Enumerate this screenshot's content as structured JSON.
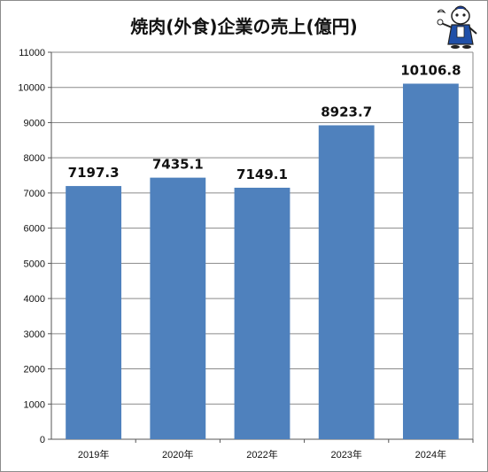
{
  "chart_data": {
    "type": "bar",
    "title": "焼肉(外食)企業の売上(億円)",
    "categories": [
      "2019年",
      "2020年",
      "2022年",
      "2023年",
      "2024年"
    ],
    "values": [
      7197.3,
      7435.1,
      7149.1,
      8923.7,
      10106.8
    ],
    "value_labels": [
      "7197.3",
      "7435.1",
      "7149.1",
      "8923.7",
      "10106.8"
    ],
    "ylim": [
      0,
      11000
    ],
    "yticks": [
      "0",
      "1000",
      "2000",
      "3000",
      "4000",
      "5000",
      "6000",
      "7000",
      "8000",
      "9000",
      "10000",
      "11000"
    ],
    "grid": true,
    "legend": "none",
    "bar_color": "#4f81bd"
  },
  "mascot": {
    "icon": "mascot-character-icon"
  }
}
